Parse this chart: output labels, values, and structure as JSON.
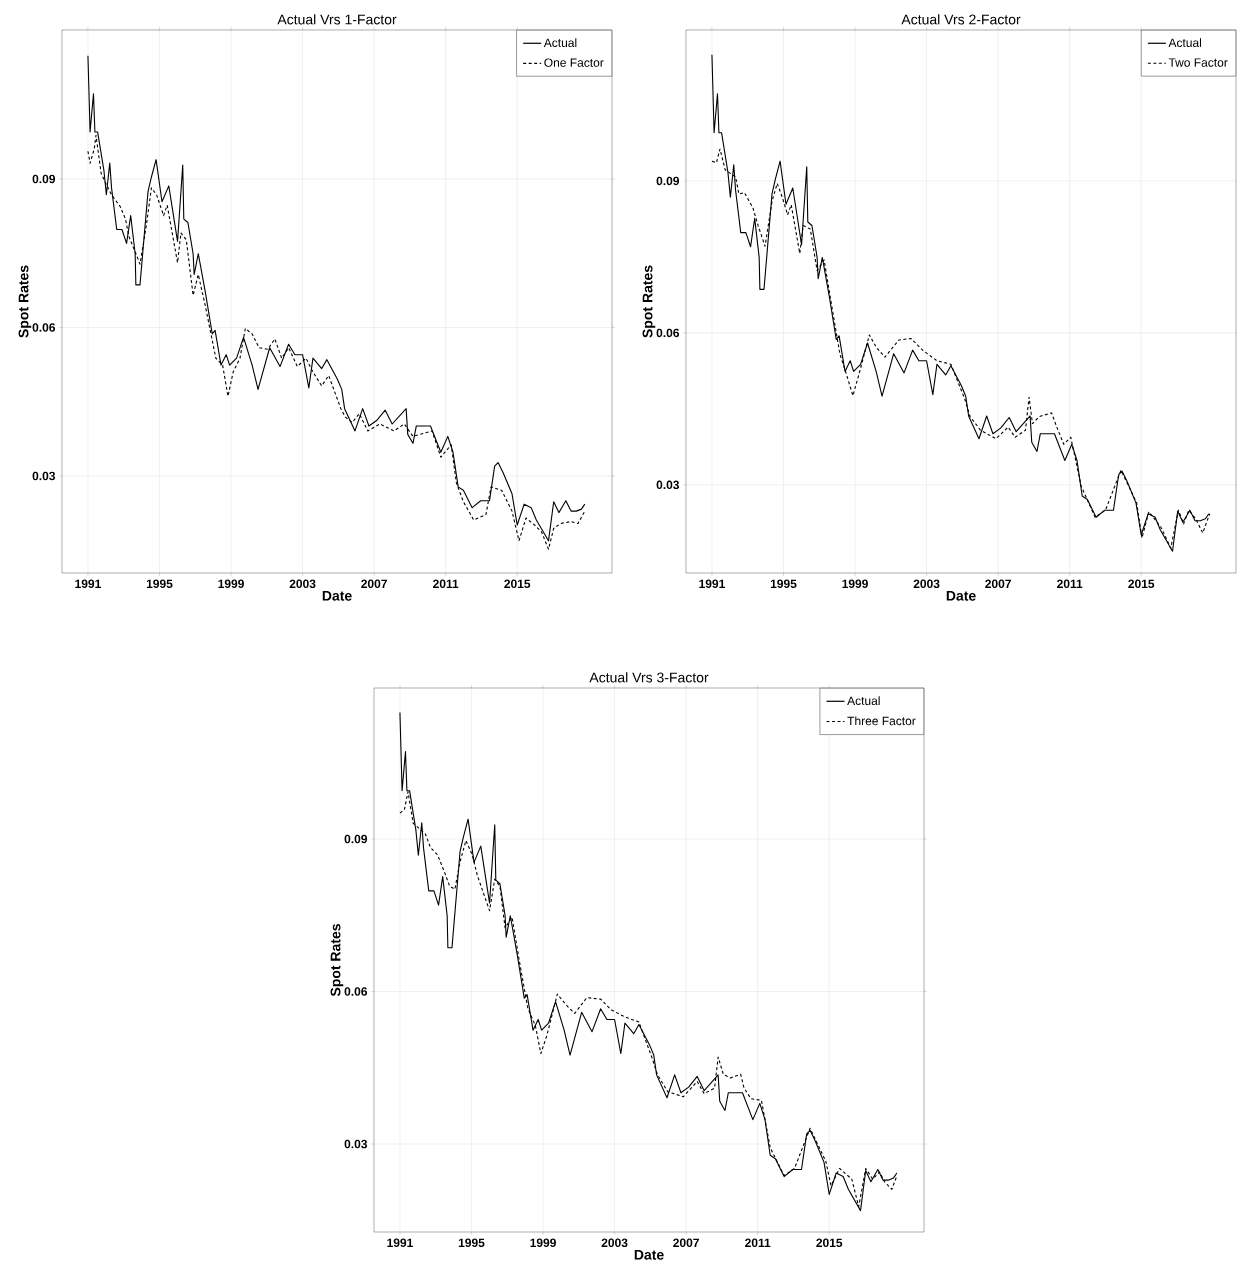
{
  "chart_data": [
    {
      "type": "line",
      "title": "Actual Vrs 1-Factor",
      "xlabel": "Date",
      "ylabel": "Spot Rates",
      "xlim": [
        1989.55,
        2020.3
      ],
      "ylim": [
        0.0104,
        0.1201
      ],
      "xticks": [
        1991,
        1995,
        1999,
        2003,
        2007,
        2011,
        2015
      ],
      "yticks": [
        0.03,
        0.06,
        0.09
      ],
      "grid": true,
      "legend": "top right",
      "series": [
        {
          "name": "Actual",
          "color": "#000000",
          "line_style": "solid",
          "x": [
            1991.0,
            1991.12,
            1991.31,
            1991.39,
            1991.54,
            1991.89,
            1992.03,
            1992.22,
            1992.32,
            1992.61,
            1992.9,
            1993.16,
            1993.39,
            1993.64,
            1993.68,
            1993.91,
            1994.36,
            1994.55,
            1994.81,
            1995.14,
            1995.52,
            1996.01,
            1996.3,
            1996.36,
            1996.59,
            1996.88,
            1996.94,
            1997.17,
            1997.56,
            1997.95,
            1998.11,
            1998.44,
            1998.73,
            1998.92,
            1999.31,
            1999.7,
            2000.18,
            2000.51,
            2001.16,
            2001.74,
            2002.22,
            2002.57,
            2003.0,
            2003.35,
            2003.58,
            2004.07,
            2004.36,
            2004.94,
            2005.19,
            2005.35,
            2005.93,
            2006.36,
            2006.71,
            2007.14,
            2007.62,
            2008.01,
            2008.79,
            2008.88,
            2009.17,
            2009.36,
            2010.15,
            2010.73,
            2011.12,
            2011.41,
            2011.7,
            2011.99,
            2012.48,
            2012.96,
            2013.45,
            2013.74,
            2013.93,
            2014.22,
            2014.71,
            2015.0,
            2015.39,
            2015.78,
            2016.07,
            2016.75,
            2017.04,
            2017.33,
            2017.72,
            2018.01,
            2018.3,
            2018.59,
            2018.78
          ],
          "values": [
            0.1149,
            0.0995,
            0.1072,
            0.0995,
            0.0995,
            0.0918,
            0.0868,
            0.0932,
            0.0882,
            0.0798,
            0.0798,
            0.077,
            0.0826,
            0.0749,
            0.0686,
            0.0686,
            0.0875,
            0.0904,
            0.0939,
            0.0854,
            0.0886,
            0.0774,
            0.0928,
            0.0819,
            0.0812,
            0.0749,
            0.0707,
            0.0749,
            0.0672,
            0.0587,
            0.0594,
            0.0524,
            0.0545,
            0.0524,
            0.0538,
            0.058,
            0.0524,
            0.0475,
            0.0559,
            0.0521,
            0.0566,
            0.0545,
            0.0545,
            0.0478,
            0.0538,
            0.0517,
            0.0535,
            0.0496,
            0.0475,
            0.0436,
            0.0391,
            0.0436,
            0.0401,
            0.0412,
            0.0433,
            0.0405,
            0.0436,
            0.0384,
            0.0366,
            0.0401,
            0.0401,
            0.0348,
            0.038,
            0.0348,
            0.0278,
            0.0271,
            0.0236,
            0.025,
            0.025,
            0.032,
            0.0327,
            0.0306,
            0.0264,
            0.0201,
            0.0243,
            0.0236,
            0.0211,
            0.0169,
            0.0248,
            0.0226,
            0.025,
            0.0229,
            0.0229,
            0.0233,
            0.0243
          ]
        },
        {
          "name": "One Factor",
          "color": "#000000",
          "line_style": "dashed",
          "x": [
            1991.0,
            1991.12,
            1991.35,
            1991.45,
            1991.74,
            1992.03,
            1992.32,
            1992.81,
            1993.1,
            1993.29,
            1993.68,
            1993.91,
            1994.26,
            1994.55,
            1994.84,
            1995.23,
            1995.43,
            1996.01,
            1996.2,
            1996.5,
            1996.88,
            1997.17,
            1997.56,
            1998.15,
            1998.53,
            1998.83,
            1999.12,
            1999.5,
            1999.8,
            2000.18,
            2000.57,
            2001.06,
            2001.45,
            2001.83,
            2002.22,
            2002.71,
            2003.19,
            2003.58,
            2004.07,
            2004.46,
            2005.14,
            2005.39,
            2005.78,
            2006.17,
            2006.65,
            2007.33,
            2008.11,
            2008.69,
            2009.17,
            2010.24,
            2010.73,
            2011.31,
            2011.6,
            2011.99,
            2012.57,
            2013.25,
            2013.54,
            2014.13,
            2014.71,
            2015.1,
            2015.49,
            2015.97,
            2016.36,
            2016.75,
            2017.04,
            2017.43,
            2018.01,
            2018.4,
            2018.78
          ],
          "values": [
            0.0956,
            0.0932,
            0.096,
            0.0988,
            0.0911,
            0.0889,
            0.0868,
            0.0844,
            0.0819,
            0.0784,
            0.0749,
            0.0728,
            0.0805,
            0.0882,
            0.0868,
            0.0826,
            0.0847,
            0.0731,
            0.0791,
            0.0777,
            0.0665,
            0.0707,
            0.0644,
            0.0538,
            0.0524,
            0.0461,
            0.051,
            0.0538,
            0.0598,
            0.0587,
            0.0559,
            0.0556,
            0.0577,
            0.0538,
            0.0559,
            0.0521,
            0.0538,
            0.051,
            0.0482,
            0.0503,
            0.0436,
            0.0419,
            0.0408,
            0.0426,
            0.0391,
            0.0405,
            0.0391,
            0.0405,
            0.038,
            0.0391,
            0.0338,
            0.0363,
            0.0286,
            0.0248,
            0.0211,
            0.0222,
            0.0278,
            0.0271,
            0.0229,
            0.0169,
            0.0215,
            0.0201,
            0.0187,
            0.0152,
            0.0194,
            0.0204,
            0.0208,
            0.0204,
            0.0229
          ]
        }
      ]
    },
    {
      "type": "line",
      "title": "Actual Vrs 2-Factor",
      "xlabel": "Date",
      "ylabel": "Spot Rates",
      "xlim": [
        1989.55,
        2020.3
      ],
      "ylim": [
        0.0126,
        0.1198
      ],
      "xticks": [
        1991,
        1995,
        1999,
        2003,
        2007,
        2011,
        2015
      ],
      "yticks": [
        0.03,
        0.06,
        0.09
      ],
      "grid": true,
      "legend": "top right",
      "series": [
        {
          "name": "Actual",
          "color": "#000000",
          "line_style": "solid",
          "x": [
            1991.0,
            1991.12,
            1991.31,
            1991.39,
            1991.54,
            1991.89,
            1992.03,
            1992.22,
            1992.32,
            1992.61,
            1992.9,
            1993.16,
            1993.39,
            1993.64,
            1993.68,
            1993.91,
            1994.36,
            1994.55,
            1994.81,
            1995.14,
            1995.52,
            1996.01,
            1996.3,
            1996.36,
            1996.59,
            1996.88,
            1996.94,
            1997.17,
            1997.56,
            1997.95,
            1998.11,
            1998.44,
            1998.73,
            1998.92,
            1999.31,
            1999.7,
            2000.18,
            2000.51,
            2001.16,
            2001.74,
            2002.22,
            2002.57,
            2003.0,
            2003.35,
            2003.58,
            2004.07,
            2004.36,
            2004.94,
            2005.19,
            2005.35,
            2005.93,
            2006.36,
            2006.71,
            2007.14,
            2007.62,
            2008.01,
            2008.79,
            2008.88,
            2009.17,
            2009.36,
            2010.15,
            2010.73,
            2011.12,
            2011.41,
            2011.7,
            2011.99,
            2012.48,
            2012.96,
            2013.45,
            2013.74,
            2013.93,
            2014.22,
            2014.71,
            2015.0,
            2015.39,
            2015.78,
            2016.07,
            2016.75,
            2017.04,
            2017.33,
            2017.72,
            2018.01,
            2018.3,
            2018.59,
            2018.78
          ],
          "values": [
            0.1149,
            0.0995,
            0.1072,
            0.0995,
            0.0995,
            0.0918,
            0.0868,
            0.0932,
            0.0882,
            0.0798,
            0.0798,
            0.077,
            0.0826,
            0.0749,
            0.0686,
            0.0686,
            0.0875,
            0.0904,
            0.0939,
            0.0854,
            0.0886,
            0.0774,
            0.0928,
            0.0819,
            0.0812,
            0.0749,
            0.0707,
            0.0749,
            0.0672,
            0.0587,
            0.0594,
            0.0524,
            0.0545,
            0.0524,
            0.0538,
            0.058,
            0.0524,
            0.0475,
            0.0559,
            0.0521,
            0.0566,
            0.0545,
            0.0545,
            0.0478,
            0.0538,
            0.0517,
            0.0535,
            0.0496,
            0.0475,
            0.0436,
            0.0391,
            0.0436,
            0.0401,
            0.0412,
            0.0433,
            0.0405,
            0.0436,
            0.0384,
            0.0366,
            0.0401,
            0.0401,
            0.0348,
            0.038,
            0.0348,
            0.0278,
            0.0271,
            0.0236,
            0.025,
            0.025,
            0.032,
            0.0327,
            0.0306,
            0.0264,
            0.0201,
            0.0243,
            0.0236,
            0.0211,
            0.0169,
            0.0248,
            0.0226,
            0.025,
            0.0229,
            0.0229,
            0.0233,
            0.0243
          ]
        },
        {
          "name": "Two Factor",
          "color": "#000000",
          "line_style": "dashed",
          "x": [
            1991.0,
            1991.25,
            1991.45,
            1991.74,
            1992.32,
            1992.51,
            1992.81,
            1993.29,
            1993.58,
            1993.97,
            1994.36,
            1994.65,
            1994.94,
            1995.23,
            1995.43,
            1995.91,
            1996.1,
            1996.5,
            1996.88,
            1997.27,
            1997.66,
            1998.15,
            1998.53,
            1998.88,
            1999.21,
            1999.8,
            2000.18,
            2000.67,
            2001.45,
            2002.13,
            2002.81,
            2003.58,
            2004.36,
            2005.14,
            2005.43,
            2006.01,
            2006.88,
            2007.56,
            2007.95,
            2008.53,
            2008.73,
            2008.92,
            2009.31,
            2009.99,
            2010.28,
            2010.67,
            2011.06,
            2011.64,
            2012.42,
            2013.0,
            2013.87,
            2014.75,
            2015.04,
            2015.43,
            2016.11,
            2016.65,
            2017.08,
            2017.37,
            2017.66,
            2018.05,
            2018.44,
            2018.83
          ],
          "values": [
            0.0939,
            0.0936,
            0.0963,
            0.0922,
            0.0908,
            0.0874,
            0.0877,
            0.0847,
            0.0812,
            0.0771,
            0.086,
            0.0895,
            0.0867,
            0.0833,
            0.0853,
            0.0757,
            0.0812,
            0.0805,
            0.0723,
            0.0744,
            0.0661,
            0.0559,
            0.0517,
            0.0476,
            0.0517,
            0.0596,
            0.0572,
            0.0552,
            0.0586,
            0.0589,
            0.0565,
            0.0545,
            0.0538,
            0.0469,
            0.0435,
            0.0408,
            0.0391,
            0.0414,
            0.0394,
            0.0408,
            0.0473,
            0.0421,
            0.0435,
            0.0442,
            0.0414,
            0.038,
            0.0394,
            0.0298,
            0.0236,
            0.025,
            0.0329,
            0.0264,
            0.0195,
            0.0247,
            0.0216,
            0.0175,
            0.025,
            0.0223,
            0.025,
            0.0233,
            0.0205,
            0.0243
          ]
        }
      ]
    },
    {
      "type": "line",
      "title": "Actual Vrs 3-Factor",
      "xlabel": "Date",
      "ylabel": "Spot Rates",
      "xlim": [
        1989.55,
        2020.3
      ],
      "ylim": [
        0.0127,
        0.1197
      ],
      "xticks": [
        1991,
        1995,
        1999,
        2003,
        2007,
        2011,
        2015
      ],
      "yticks": [
        0.03,
        0.06,
        0.09
      ],
      "grid": true,
      "legend": "top right",
      "series": [
        {
          "name": "Actual",
          "color": "#000000",
          "line_style": "solid",
          "x": [
            1991.0,
            1991.12,
            1991.31,
            1991.39,
            1991.54,
            1991.89,
            1992.03,
            1992.22,
            1992.32,
            1992.61,
            1992.9,
            1993.16,
            1993.39,
            1993.64,
            1993.68,
            1993.91,
            1994.36,
            1994.55,
            1994.81,
            1995.14,
            1995.52,
            1996.01,
            1996.3,
            1996.36,
            1996.59,
            1996.88,
            1996.94,
            1997.17,
            1997.56,
            1997.95,
            1998.11,
            1998.44,
            1998.73,
            1998.92,
            1999.31,
            1999.7,
            2000.18,
            2000.51,
            2001.16,
            2001.74,
            2002.22,
            2002.57,
            2003.0,
            2003.35,
            2003.58,
            2004.07,
            2004.36,
            2004.94,
            2005.19,
            2005.35,
            2005.93,
            2006.36,
            2006.71,
            2007.14,
            2007.62,
            2008.01,
            2008.79,
            2008.88,
            2009.17,
            2009.36,
            2010.15,
            2010.73,
            2011.12,
            2011.41,
            2011.7,
            2011.99,
            2012.48,
            2012.96,
            2013.45,
            2013.74,
            2013.93,
            2014.22,
            2014.71,
            2015.0,
            2015.39,
            2015.78,
            2016.07,
            2016.75,
            2017.04,
            2017.33,
            2017.72,
            2018.01,
            2018.3,
            2018.59,
            2018.78
          ],
          "values": [
            0.1149,
            0.0995,
            0.1072,
            0.0995,
            0.0995,
            0.0918,
            0.0868,
            0.0932,
            0.0882,
            0.0798,
            0.0798,
            0.077,
            0.0826,
            0.0749,
            0.0686,
            0.0686,
            0.0875,
            0.0904,
            0.0939,
            0.0854,
            0.0886,
            0.0774,
            0.0928,
            0.0819,
            0.0812,
            0.0749,
            0.0707,
            0.0749,
            0.0672,
            0.0587,
            0.0594,
            0.0524,
            0.0545,
            0.0524,
            0.0538,
            0.058,
            0.0524,
            0.0475,
            0.0559,
            0.0521,
            0.0566,
            0.0545,
            0.0545,
            0.0478,
            0.0538,
            0.0517,
            0.0535,
            0.0496,
            0.0475,
            0.0436,
            0.0391,
            0.0436,
            0.0401,
            0.0412,
            0.0433,
            0.0405,
            0.0436,
            0.0384,
            0.0366,
            0.0401,
            0.0401,
            0.0348,
            0.038,
            0.0348,
            0.0278,
            0.0271,
            0.0236,
            0.025,
            0.025,
            0.032,
            0.0327,
            0.0306,
            0.0264,
            0.0201,
            0.0243,
            0.0236,
            0.0211,
            0.0169,
            0.0248,
            0.0226,
            0.025,
            0.0229,
            0.0229,
            0.0233,
            0.0243
          ]
        },
        {
          "name": "Three Factor",
          "color": "#000000",
          "line_style": "dashed",
          "x": [
            1991.0,
            1991.25,
            1991.45,
            1991.74,
            1992.42,
            1992.71,
            1993.1,
            1993.49,
            1993.78,
            1994.07,
            1994.36,
            1994.69,
            1995.04,
            1995.33,
            1996.01,
            1996.3,
            1996.59,
            1996.88,
            1997.27,
            1997.66,
            1998.15,
            1998.57,
            1998.88,
            1999.21,
            1999.8,
            2000.28,
            2000.77,
            2001.45,
            2002.22,
            2002.81,
            2003.58,
            2004.36,
            2005.14,
            2005.39,
            2005.97,
            2006.84,
            2007.62,
            2008.01,
            2008.59,
            2008.79,
            2009.08,
            2009.47,
            2010.05,
            2010.24,
            2010.63,
            2011.21,
            2011.7,
            2012.48,
            2013.06,
            2013.93,
            2014.81,
            2015.1,
            2015.58,
            2016.26,
            2016.65,
            2017.04,
            2017.43,
            2017.82,
            2018.11,
            2018.5,
            2018.79
          ],
          "values": [
            0.0951,
            0.0958,
            0.0993,
            0.0931,
            0.091,
            0.0883,
            0.0869,
            0.0835,
            0.0807,
            0.0801,
            0.0855,
            0.0897,
            0.0869,
            0.0828,
            0.0759,
            0.0821,
            0.0807,
            0.0725,
            0.0746,
            0.0663,
            0.0567,
            0.0533,
            0.0478,
            0.0513,
            0.0595,
            0.0574,
            0.0557,
            0.0588,
            0.0585,
            0.0564,
            0.055,
            0.054,
            0.0465,
            0.0437,
            0.0403,
            0.0393,
            0.0423,
            0.0399,
            0.041,
            0.0471,
            0.0437,
            0.043,
            0.0437,
            0.041,
            0.0389,
            0.0386,
            0.0293,
            0.0238,
            0.0252,
            0.0331,
            0.0266,
            0.0218,
            0.0252,
            0.0231,
            0.0177,
            0.0252,
            0.0231,
            0.0245,
            0.0225,
            0.0211,
            0.0238
          ]
        }
      ]
    }
  ]
}
